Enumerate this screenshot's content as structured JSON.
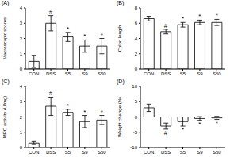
{
  "chart_data": [
    {
      "type": "bar",
      "title": "(A)",
      "y_label": "Macroscopic scores",
      "categories": [
        "CON",
        "DSS",
        "S5",
        "S9",
        "S50"
      ],
      "values": [
        0.5,
        3.0,
        2.1,
        1.5,
        1.5
      ],
      "errors": [
        0.4,
        0.5,
        0.3,
        0.4,
        0.5
      ],
      "annotations": [
        null,
        "#",
        "*",
        "*",
        "*"
      ],
      "color": "#ffffff",
      "ylim": [
        0,
        4
      ],
      "yticks": [
        0,
        1,
        2,
        3,
        4
      ]
    },
    {
      "type": "bar",
      "title": "(B)",
      "y_label": "Colon length",
      "categories": [
        "CON",
        "DSS",
        "S5",
        "S9",
        "S50"
      ],
      "values": [
        6.6,
        4.9,
        5.8,
        6.1,
        6.1
      ],
      "errors": [
        0.3,
        0.3,
        0.3,
        0.3,
        0.4
      ],
      "annotations": [
        null,
        "#",
        "*",
        "*",
        "*"
      ],
      "color": "#ffffff",
      "ylim": [
        0,
        8
      ],
      "yticks": [
        0,
        2,
        4,
        6,
        8
      ]
    },
    {
      "type": "bar",
      "title": "(C)",
      "y_label": "MPO activity (U/mg)",
      "categories": [
        "CON",
        "DSS",
        "S5",
        "S9",
        "S50"
      ],
      "values": [
        0.3,
        2.7,
        2.3,
        1.7,
        1.8
      ],
      "errors": [
        0.1,
        0.6,
        0.2,
        0.4,
        0.3
      ],
      "annotations": [
        null,
        "#",
        "*",
        "*",
        "*"
      ],
      "color": "#ffffff",
      "ylim": [
        0,
        4
      ],
      "yticks": [
        0,
        1,
        2,
        3,
        4
      ]
    },
    {
      "type": "bar",
      "title": "(D)",
      "y_label": "Weight change (%)",
      "categories": [
        "CON",
        "DSS",
        "S5",
        "S9",
        "S50"
      ],
      "values": [
        3.0,
        -3.0,
        -1.5,
        -0.5,
        -0.3
      ],
      "errors": [
        1.2,
        1.0,
        1.5,
        0.6,
        0.5
      ],
      "annotations": [
        null,
        "#",
        "*",
        "*",
        "*"
      ],
      "color": "#ffffff",
      "ylim": [
        -10,
        10
      ],
      "yticks": [
        -10,
        -5,
        0,
        5,
        10
      ]
    }
  ]
}
